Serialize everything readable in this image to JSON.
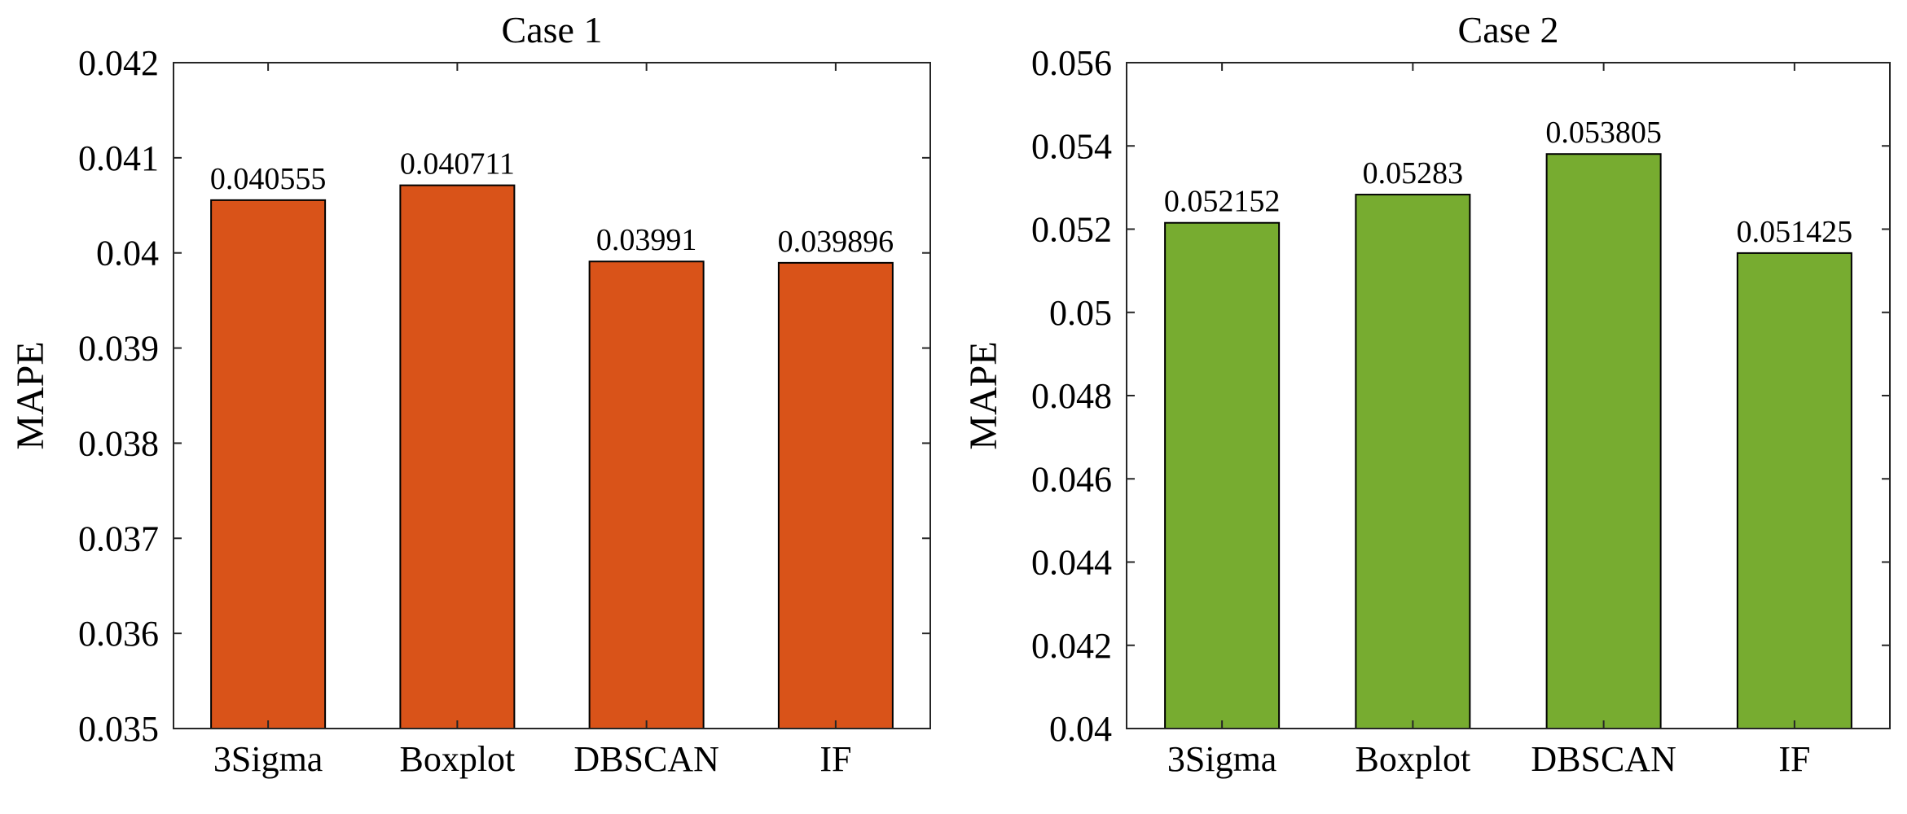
{
  "chart_data": [
    {
      "type": "bar",
      "title": "Case 1",
      "xlabel": "",
      "ylabel": "MAPE",
      "categories": [
        "3Sigma",
        "Boxplot",
        "DBSCAN",
        "IF"
      ],
      "values": [
        0.040555,
        0.040711,
        0.03991,
        0.039896
      ],
      "data_labels": [
        "0.040555",
        "0.040711",
        "0.03991",
        "0.039896"
      ],
      "ylim": [
        0.035,
        0.042
      ],
      "yticks": [
        0.035,
        0.036,
        0.037,
        0.038,
        0.039,
        0.04,
        0.041,
        0.042
      ],
      "ytick_labels": [
        "0.035",
        "0.036",
        "0.037",
        "0.038",
        "0.039",
        "0.04",
        "0.041",
        "0.042"
      ],
      "color": "#D95319",
      "grid": false
    },
    {
      "type": "bar",
      "title": "Case 2",
      "xlabel": "",
      "ylabel": "MAPE",
      "categories": [
        "3Sigma",
        "Boxplot",
        "DBSCAN",
        "IF"
      ],
      "values": [
        0.052152,
        0.05283,
        0.053805,
        0.051425
      ],
      "data_labels": [
        "0.052152",
        "0.05283",
        "0.053805",
        "0.051425"
      ],
      "ylim": [
        0.04,
        0.056
      ],
      "yticks": [
        0.04,
        0.042,
        0.044,
        0.046,
        0.048,
        0.05,
        0.052,
        0.054,
        0.056
      ],
      "ytick_labels": [
        "0.04",
        "0.042",
        "0.044",
        "0.046",
        "0.048",
        "0.05",
        "0.052",
        "0.054",
        "0.056"
      ],
      "color": "#77AC30",
      "grid": false
    }
  ]
}
